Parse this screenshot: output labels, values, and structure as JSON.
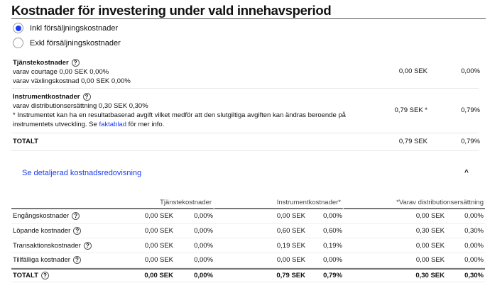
{
  "title": "Kostnader för investering under vald innehavsperiod",
  "radios": [
    {
      "label": "Inkl försäljningskostnader",
      "selected": true
    },
    {
      "label": "Exkl försäljningskostnader",
      "selected": false
    }
  ],
  "service": {
    "heading": "Tjänstekostnader",
    "line1": "varav courtage 0,00 SEK  0,00%",
    "line2": "varav växlingskostnad 0,00 SEK  0,00%",
    "amount": "0,00 SEK",
    "pct": "0,00%"
  },
  "instrument": {
    "heading": "Instrumentkostnader",
    "line1": "varav distributionsersättning 0,30 SEK  0,30%",
    "note_pre": "* Instrumentet kan ha en resultatbaserad avgift vilket medför att den slutgiltiga avgiften kan ändras beroende på instrumentets utveckling. Se ",
    "note_link": "faktablad",
    "note_post": " för mer info.",
    "amount": "0,79 SEK *",
    "pct": "0,79%"
  },
  "total": {
    "label": "TOTALT",
    "amount": "0,79 SEK",
    "pct": "0,79%"
  },
  "help_icon": "?",
  "details": {
    "link": "Se detaljerad kostnadsredovisning",
    "chevron": "^",
    "headers": [
      "Tjänstekostnader",
      "Instrumentkostnader*",
      "*Varav distributionsersättning"
    ],
    "rows": [
      {
        "label": "Engångskostnader",
        "v": [
          "0,00 SEK",
          "0,00%",
          "0,00 SEK",
          "0,00%",
          "0,00 SEK",
          "0,00%"
        ]
      },
      {
        "label": "Löpande kostnader",
        "v": [
          "0,00 SEK",
          "0,00%",
          "0,60 SEK",
          "0,60%",
          "0,30 SEK",
          "0,30%"
        ]
      },
      {
        "label": "Transaktionskostnader",
        "v": [
          "0,00 SEK",
          "0,00%",
          "0,19 SEK",
          "0,19%",
          "0,00 SEK",
          "0,00%"
        ]
      },
      {
        "label": "Tillfälliga kostnader",
        "v": [
          "0,00 SEK",
          "0,00%",
          "0,00 SEK",
          "0,00%",
          "0,00 SEK",
          "0,00%"
        ]
      }
    ],
    "total": {
      "label": "TOTALT",
      "v": [
        "0,00 SEK",
        "0,00%",
        "0,79 SEK",
        "0,79%",
        "0,30 SEK",
        "0,30%"
      ]
    }
  },
  "colors": {
    "accent": "#1a3cf5"
  }
}
